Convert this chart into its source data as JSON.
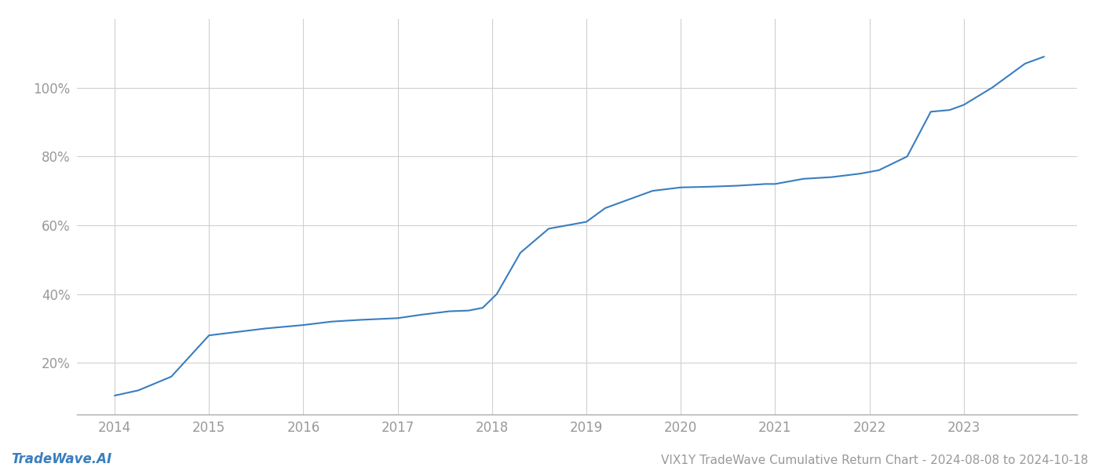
{
  "title": "VIX1Y TradeWave Cumulative Return Chart - 2024-08-08 to 2024-10-18",
  "watermark": "TradeWave.AI",
  "line_color": "#3a7ebf",
  "background_color": "#ffffff",
  "grid_color": "#d0d0d0",
  "x_values": [
    2014.0,
    2014.25,
    2014.6,
    2015.0,
    2015.15,
    2015.3,
    2015.6,
    2016.0,
    2016.3,
    2016.6,
    2017.0,
    2017.25,
    2017.55,
    2017.75,
    2017.9,
    2018.05,
    2018.3,
    2018.6,
    2018.9,
    2019.0,
    2019.2,
    2019.4,
    2019.7,
    2020.0,
    2020.3,
    2020.6,
    2020.9,
    2021.0,
    2021.3,
    2021.6,
    2021.75,
    2021.9,
    2022.1,
    2022.4,
    2022.65,
    2022.85,
    2023.0,
    2023.3,
    2023.65,
    2023.85
  ],
  "y_values": [
    10.5,
    12,
    16,
    28,
    28.5,
    29,
    30,
    31,
    32,
    32.5,
    33,
    34,
    35,
    35.2,
    36,
    40,
    52,
    59,
    60.5,
    61,
    65,
    67,
    70,
    71,
    71.2,
    71.5,
    72,
    72,
    73.5,
    74,
    74.5,
    75,
    76,
    80,
    93,
    93.5,
    95,
    100,
    107,
    109
  ],
  "yticks": [
    20,
    40,
    60,
    80,
    100
  ],
  "ytick_labels": [
    "20%",
    "40%",
    "60%",
    "80%",
    "100%"
  ],
  "xticks": [
    2014,
    2015,
    2016,
    2017,
    2018,
    2019,
    2020,
    2021,
    2022,
    2023
  ],
  "xlim": [
    2013.6,
    2024.2
  ],
  "ylim": [
    5,
    120
  ],
  "line_width": 1.5,
  "tick_color": "#999999",
  "tick_fontsize": 12,
  "watermark_fontsize": 12,
  "title_fontsize": 11,
  "spine_color": "#aaaaaa"
}
